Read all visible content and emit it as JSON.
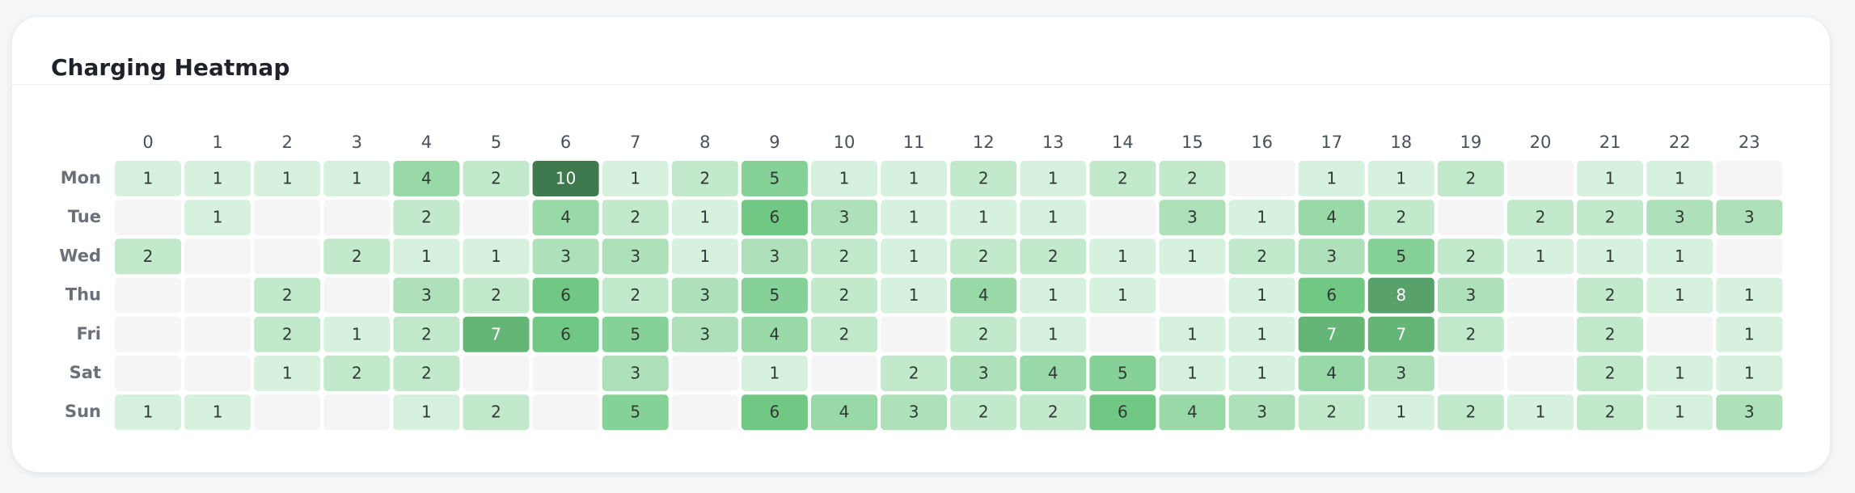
{
  "chart_data": {
    "type": "heatmap",
    "title": "Charging Heatmap",
    "x_categories": [
      "0",
      "1",
      "2",
      "3",
      "4",
      "5",
      "6",
      "7",
      "8",
      "9",
      "10",
      "11",
      "12",
      "13",
      "14",
      "15",
      "16",
      "17",
      "18",
      "19",
      "20",
      "21",
      "22",
      "23"
    ],
    "y_categories": [
      "Mon",
      "Tue",
      "Wed",
      "Thu",
      "Fri",
      "Sat",
      "Sun"
    ],
    "values": [
      [
        1,
        1,
        1,
        1,
        4,
        2,
        10,
        1,
        2,
        5,
        1,
        1,
        2,
        1,
        2,
        2,
        null,
        1,
        1,
        2,
        null,
        1,
        1,
        null
      ],
      [
        null,
        1,
        null,
        null,
        2,
        null,
        4,
        2,
        1,
        6,
        3,
        1,
        1,
        1,
        null,
        3,
        1,
        4,
        2,
        null,
        2,
        2,
        3,
        3
      ],
      [
        2,
        null,
        null,
        2,
        1,
        1,
        3,
        3,
        1,
        3,
        2,
        1,
        2,
        2,
        1,
        1,
        2,
        3,
        5,
        2,
        1,
        1,
        1,
        null
      ],
      [
        null,
        null,
        2,
        null,
        3,
        2,
        6,
        2,
        3,
        5,
        2,
        1,
        4,
        1,
        1,
        null,
        1,
        6,
        8,
        3,
        null,
        2,
        1,
        1
      ],
      [
        null,
        null,
        2,
        1,
        2,
        7,
        6,
        5,
        3,
        4,
        2,
        null,
        2,
        1,
        null,
        1,
        1,
        7,
        7,
        2,
        null,
        2,
        null,
        1
      ],
      [
        null,
        null,
        1,
        2,
        2,
        null,
        null,
        3,
        null,
        1,
        null,
        2,
        3,
        4,
        5,
        1,
        1,
        4,
        3,
        null,
        null,
        2,
        1,
        1
      ],
      [
        1,
        1,
        null,
        null,
        1,
        2,
        null,
        5,
        null,
        6,
        4,
        3,
        2,
        2,
        6,
        4,
        3,
        2,
        1,
        2,
        1,
        2,
        1,
        3
      ]
    ],
    "color_scale": [
      "#d6f1dd",
      "#72c986",
      "#3f7a4e"
    ],
    "empty_color": "#f5f5f5"
  }
}
